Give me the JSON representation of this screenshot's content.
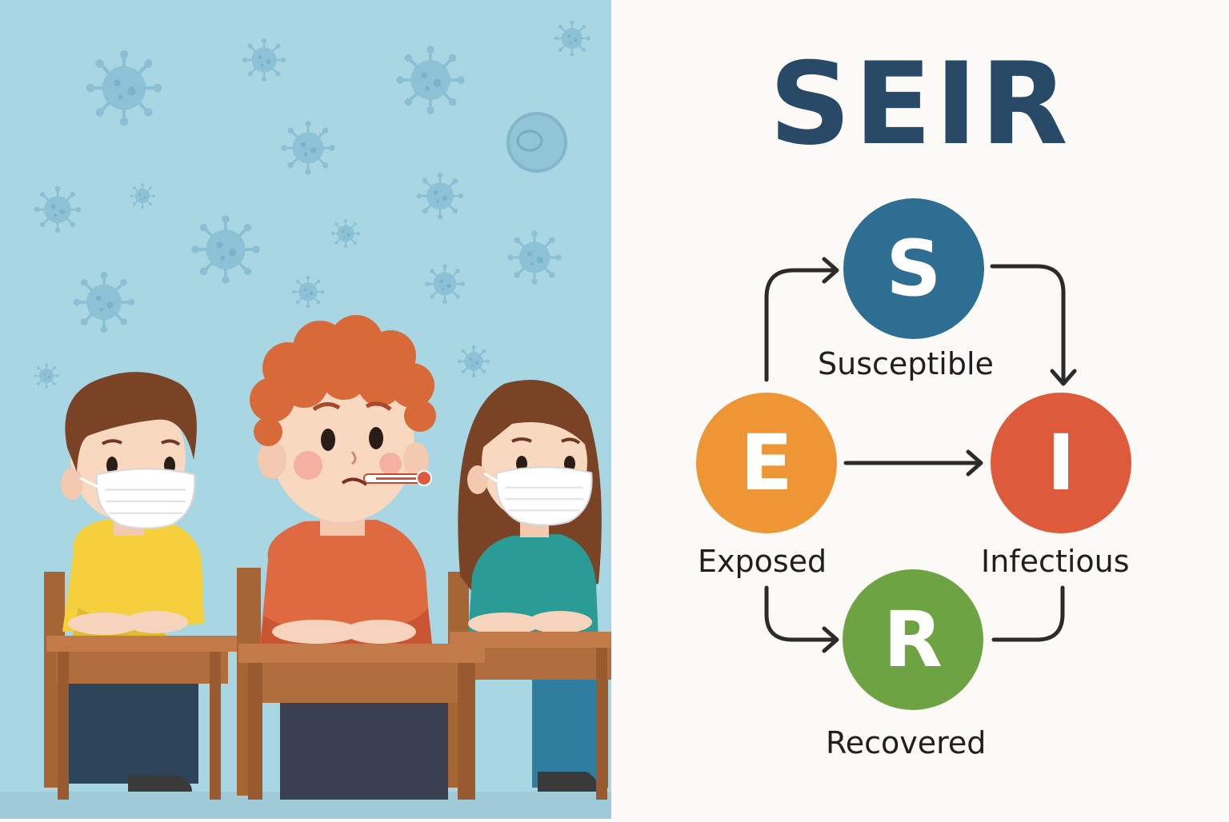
{
  "diagram": {
    "title": "SEIR",
    "title_color": "#294a66",
    "arrow_color": "#2b2b2b",
    "nodes": {
      "s": {
        "letter": "S",
        "label": "Susceptible",
        "color": "#2e6e93"
      },
      "e": {
        "letter": "E",
        "label": "Exposed",
        "color": "#ee9535"
      },
      "i": {
        "letter": "I",
        "label": "Infectious",
        "color": "#dd5a3a"
      },
      "r": {
        "letter": "R",
        "label": "Recovered",
        "color": "#6ea343"
      }
    }
  },
  "illustration": {
    "background_color": "#a9d6e3",
    "subject": "three-children-at-classroom-desks",
    "icons": [
      "virus-icon",
      "thermometer-icon",
      "face-mask-icon"
    ],
    "colors": {
      "shirt_left": "#f6cf3d",
      "shirt_middle": "#df6a42",
      "shirt_right": "#2a9c95",
      "desk": "#c27b48",
      "hair_middle": "#d86a3a",
      "hair_dark": "#7a4326"
    }
  }
}
